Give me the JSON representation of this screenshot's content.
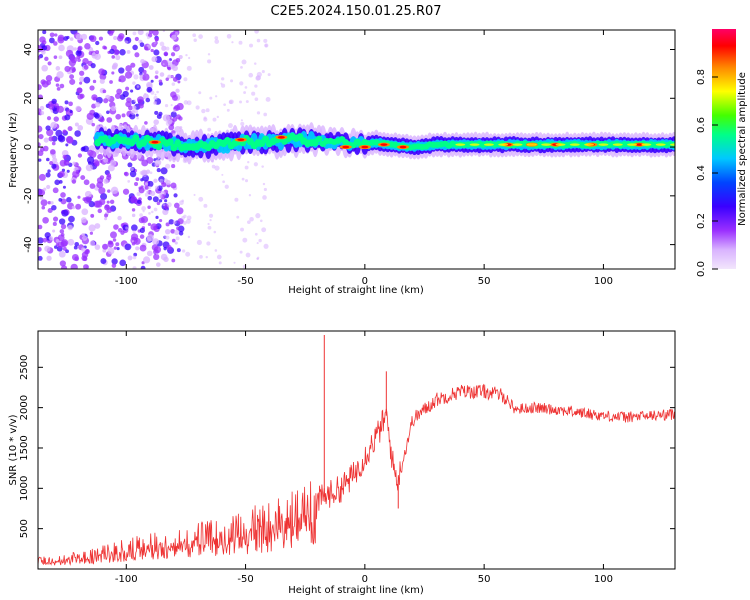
{
  "figure": {
    "title": "C2E5.2024.150.01.25.R07"
  },
  "chart_data": [
    {
      "type": "heatmap",
      "xlabel": "Height of straight line (km)",
      "ylabel": "Frequency (Hz)",
      "xlim": [
        -137,
        130
      ],
      "ylim": [
        -50,
        48
      ],
      "xticks": [
        -100,
        -50,
        0,
        50,
        100
      ],
      "yticks": [
        -40,
        -20,
        0,
        20,
        40
      ],
      "ridge": {
        "x": [
          -110,
          -100,
          -90,
          -80,
          -70,
          -60,
          -50,
          -40,
          -30,
          -20,
          -10,
          0,
          5,
          10,
          20,
          30,
          40,
          60,
          80,
          92,
          100,
          110,
          120,
          130
        ],
        "freq": [
          3,
          3,
          2,
          1,
          0,
          1,
          2,
          2,
          3,
          3,
          2,
          1,
          2,
          1,
          0,
          1,
          1,
          1,
          1,
          1,
          1,
          1,
          1,
          1
        ]
      },
      "colorbar": {
        "label": "Normalized spectral amplitude",
        "ticks": [
          0.0,
          0.2,
          0.4,
          0.6,
          0.8
        ],
        "tick_labels": [
          "0.0",
          "0.2",
          "0.4",
          "0.6",
          "0.8"
        ],
        "colormap": [
          "#f2e6fc",
          "#d9b3ff",
          "#9b30ff",
          "#3a00ff",
          "#0044ff",
          "#00c8ff",
          "#00ff88",
          "#44ff00",
          "#ffff00",
          "#ff8800",
          "#ff0000",
          "#ff0066"
        ]
      }
    },
    {
      "type": "line",
      "xlabel": "Height of straight line (km)",
      "ylabel": "SNR (10 * v/v)",
      "xlim": [
        -137,
        130
      ],
      "ylim": [
        0,
        2950
      ],
      "xticks": [
        -100,
        -50,
        0,
        50,
        100
      ],
      "yticks": [
        500,
        1000,
        1500,
        2000,
        2500
      ],
      "color": "#ee3333",
      "series": [
        {
          "x": [
            -137,
            -125,
            -115,
            -105,
            -95,
            -85,
            -75,
            -65,
            -55,
            -45,
            -35,
            -25,
            -18,
            -10,
            -5,
            0,
            5,
            9,
            12,
            14,
            20,
            30,
            40,
            50,
            58,
            63,
            70,
            80,
            90,
            100,
            110,
            120,
            130
          ],
          "values": [
            110,
            130,
            170,
            230,
            290,
            340,
            380,
            420,
            470,
            560,
            640,
            740,
            880,
            1000,
            1150,
            1400,
            1650,
            1900,
            1250,
            1100,
            1850,
            2100,
            2200,
            2200,
            2150,
            1980,
            2000,
            1980,
            1940,
            1900,
            1880,
            1900,
            1920
          ]
        }
      ],
      "spikes": [
        {
          "x": -17,
          "y": 2900
        },
        {
          "x": 9,
          "y": 2450
        },
        {
          "x": 14,
          "y": 750
        }
      ]
    }
  ]
}
